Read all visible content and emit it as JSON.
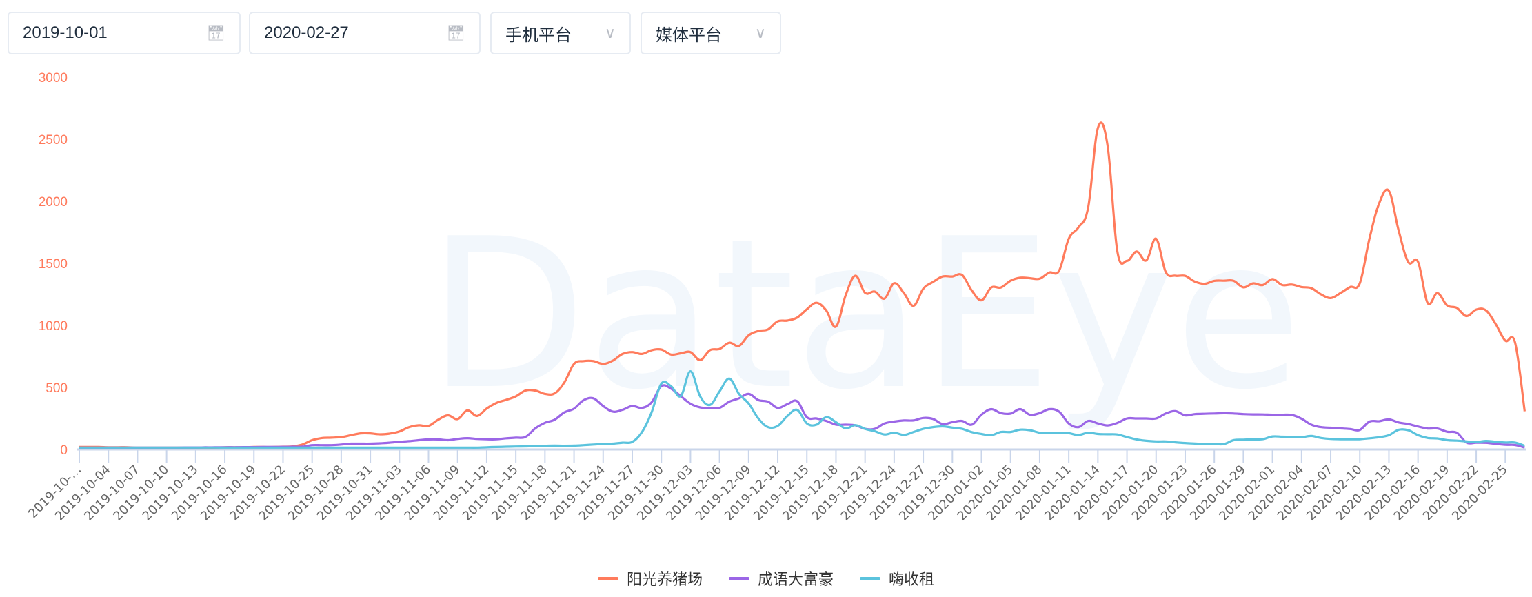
{
  "filters": {
    "start_date": "2019-10-01",
    "end_date": "2020-02-27",
    "device_platform": "手机平台",
    "media_platform": "媒体平台",
    "calendar_icon": "calendar-icon",
    "dropdown_icon": "chevron-down-icon"
  },
  "watermark": "DataEye",
  "chart_data": {
    "type": "line",
    "title": "",
    "xlabel": "",
    "ylabel": "",
    "ylim": [
      0,
      3000
    ],
    "y_ticks": [
      "0",
      "500",
      "1000",
      "1500",
      "2000",
      "2500",
      "3000"
    ],
    "x_tick_labels": [
      "2019-10-…",
      "2019-10-04",
      "2019-10-07",
      "2019-10-10",
      "2019-10-13",
      "2019-10-16",
      "2019-10-19",
      "2019-10-22",
      "2019-10-25",
      "2019-10-28",
      "2019-10-31",
      "2019-11-03",
      "2019-11-06",
      "2019-11-09",
      "2019-11-12",
      "2019-11-15",
      "2019-11-18",
      "2019-11-21",
      "2019-11-24",
      "2019-11-27",
      "2019-11-30",
      "2019-12-03",
      "2019-12-06",
      "2019-12-09",
      "2019-12-12",
      "2019-12-15",
      "2019-12-18",
      "2019-12-21",
      "2019-12-24",
      "2019-12-27",
      "2019-12-30",
      "2020-01-02",
      "2020-01-05",
      "2020-01-08",
      "2020-01-11",
      "2020-01-14",
      "2020-01-17",
      "2020-01-20",
      "2020-01-23",
      "2020-01-26",
      "2020-01-29",
      "2020-02-01",
      "2020-02-04",
      "2020-02-07",
      "2020-02-10",
      "2020-02-13",
      "2020-02-16",
      "2020-02-19",
      "2020-02-22",
      "2020-02-25"
    ],
    "x_range": [
      "2019-10-01",
      "2020-02-27"
    ],
    "grid": false,
    "legend_position": "bottom",
    "series": [
      {
        "name": "阳光养猪场",
        "color": "#ff7b5c",
        "values": [
          20,
          20,
          20,
          18,
          18,
          18,
          15,
          15,
          15,
          15,
          15,
          15,
          15,
          15,
          15,
          18,
          18,
          18,
          20,
          20,
          20,
          22,
          25,
          40,
          75,
          92,
          95,
          100,
          115,
          130,
          130,
          122,
          128,
          145,
          180,
          195,
          190,
          240,
          275,
          245,
          315,
          270,
          330,
          375,
          400,
          428,
          475,
          475,
          448,
          452,
          540,
          690,
          712,
          712,
          690,
          716,
          770,
          785,
          770,
          800,
          805,
          765,
          775,
          785,
          720,
          800,
          810,
          860,
          835,
          920,
          955,
          968,
          1033,
          1039,
          1063,
          1130,
          1182,
          1120,
          990,
          1242,
          1400,
          1262,
          1272,
          1216,
          1340,
          1260,
          1158,
          1295,
          1350,
          1394,
          1394,
          1406,
          1281,
          1202,
          1305,
          1305,
          1360,
          1384,
          1380,
          1376,
          1426,
          1440,
          1698,
          1790,
          1950,
          2591,
          2450,
          1600,
          1520,
          1595,
          1524,
          1698,
          1430,
          1400,
          1399,
          1353,
          1335,
          1359,
          1360,
          1359,
          1306,
          1339,
          1325,
          1373,
          1325,
          1329,
          1309,
          1300,
          1250,
          1220,
          1260,
          1309,
          1339,
          1700,
          1984,
          2083,
          1766,
          1510,
          1512,
          1180,
          1260,
          1161,
          1141,
          1075,
          1127,
          1121,
          1012,
          877,
          863,
          308
        ]
      },
      {
        "name": "成语大富豪",
        "color": "#9b66e6",
        "values": [
          15,
          15,
          15,
          15,
          15,
          15,
          15,
          15,
          15,
          15,
          15,
          16,
          16,
          17,
          17,
          18,
          18,
          19,
          19,
          20,
          20,
          21,
          22,
          22,
          35,
          35,
          35,
          40,
          47,
          47,
          47,
          50,
          55,
          62,
          67,
          75,
          81,
          81,
          75,
          85,
          91,
          85,
          82,
          82,
          90,
          95,
          101,
          170,
          215,
          240,
          299,
          329,
          398,
          412,
          350,
          305,
          320,
          350,
          335,
          380,
          510,
          490,
          430,
          369,
          339,
          335,
          335,
          385,
          412,
          448,
          398,
          385,
          335,
          365,
          389,
          260,
          250,
          230,
          200,
          200,
          195,
          166,
          166,
          210,
          225,
          234,
          234,
          254,
          246,
          205,
          220,
          230,
          200,
          280,
          325,
          293,
          289,
          325,
          280,
          293,
          325,
          305,
          210,
          180,
          230,
          210,
          194,
          214,
          250,
          250,
          250,
          250,
          290,
          309,
          275,
          285,
          288,
          290,
          292,
          290,
          285,
          283,
          282,
          280,
          280,
          278,
          248,
          200,
          180,
          175,
          170,
          165,
          158,
          225,
          228,
          242,
          218,
          205,
          185,
          169,
          169,
          143,
          135,
          56,
          55,
          54,
          45,
          38,
          36,
          16
        ]
      },
      {
        "name": "嗨收租",
        "color": "#5bc3dd",
        "values": [
          15,
          15,
          15,
          15,
          15,
          15,
          15,
          15,
          15,
          15,
          15,
          15,
          15,
          15,
          15,
          15,
          15,
          15,
          15,
          15,
          15,
          15,
          15,
          15,
          15,
          15,
          15,
          15,
          15,
          15,
          15,
          15,
          15,
          15,
          15,
          15,
          15,
          15,
          15,
          15,
          15,
          15,
          18,
          20,
          22,
          24,
          25,
          28,
          30,
          31,
          30,
          31,
          35,
          40,
          45,
          47,
          55,
          61,
          140,
          300,
          530,
          510,
          430,
          630,
          428,
          359,
          468,
          571,
          448,
          370,
          250,
          180,
          190,
          270,
          319,
          210,
          200,
          260,
          220,
          170,
          196,
          166,
          147,
          121,
          135,
          117,
          141,
          166,
          180,
          186,
          176,
          166,
          140,
          125,
          115,
          141,
          141,
          160,
          155,
          135,
          131,
          131,
          131,
          117,
          135,
          125,
          123,
          121,
          100,
          81,
          70,
          65,
          65,
          58,
          52,
          48,
          44,
          44,
          44,
          75,
          79,
          81,
          83,
          105,
          103,
          101,
          99,
          109,
          93,
          85,
          83,
          83,
          83,
          90,
          99,
          115,
          159,
          155,
          115,
          93,
          89,
          75,
          71,
          65,
          60,
          69,
          62,
          56,
          56,
          30
        ]
      }
    ]
  }
}
